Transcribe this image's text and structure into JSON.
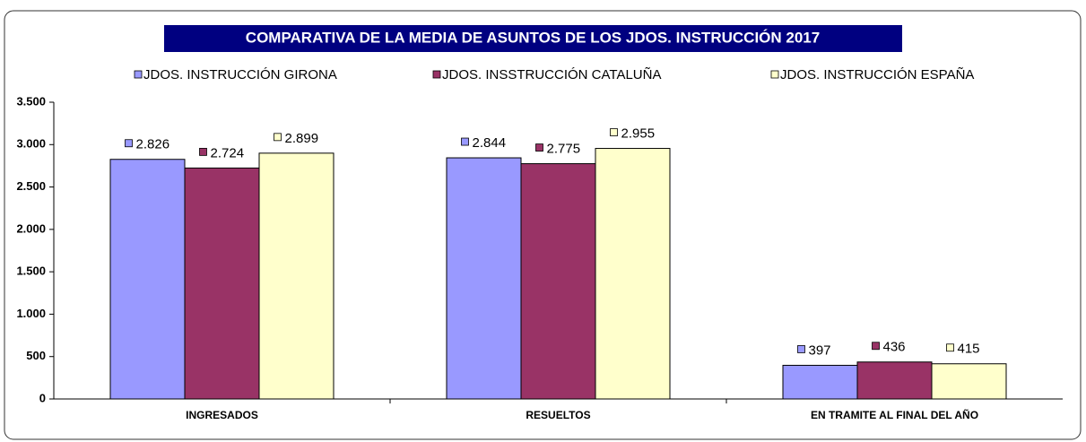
{
  "chart_data": {
    "type": "bar",
    "title": "COMPARATIVA DE LA MEDIA DE ASUNTOS DE LOS JDOS. INSTRUCCIÓN 2017",
    "categories": [
      "INGRESADOS",
      "RESUELTOS",
      "EN TRAMITE AL FINAL DEL AÑO"
    ],
    "series": [
      {
        "name": "JDOS. INSTRUCCIÓN  GIRONA",
        "color": "#9999ff",
        "values": [
          2826,
          2844,
          397
        ],
        "value_labels": [
          "2.826",
          "2.844",
          "397"
        ]
      },
      {
        "name": "JDOS. INSSTRUCCIÓN  CATALUÑA",
        "color": "#993366",
        "values": [
          2724,
          2775,
          436
        ],
        "value_labels": [
          "2.724",
          "2.775",
          "436"
        ]
      },
      {
        "name": "JDOS. INSTRUCCIÓN  ESPAÑA",
        "color": "#ffffcc",
        "values": [
          2899,
          2955,
          415
        ],
        "value_labels": [
          "2.899",
          "2.955",
          "415"
        ]
      }
    ],
    "ylim": [
      0,
      3500
    ],
    "yticks": [
      0,
      500,
      {
        "value": 1000,
        "label": "1.000"
      },
      {
        "value": 1500,
        "label": "1.500"
      },
      {
        "value": 2000,
        "label": "2.000"
      },
      {
        "value": 2500,
        "label": "2.500"
      },
      {
        "value": 3000,
        "label": "3.000"
      },
      {
        "value": 3500,
        "label": "3.500"
      }
    ],
    "grid": false,
    "legend": "top"
  }
}
